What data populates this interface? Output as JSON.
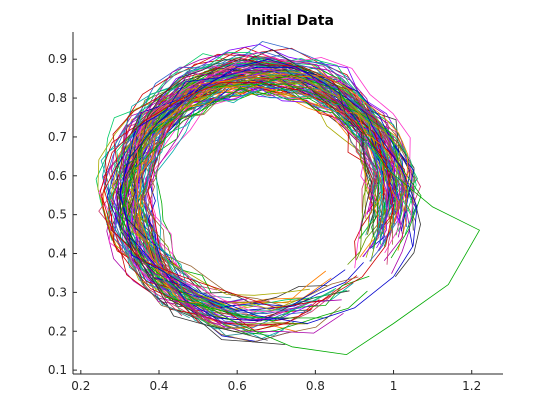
{
  "chart_data": {
    "type": "line",
    "title": "Initial Data",
    "xlabel": "",
    "ylabel": "",
    "xlim": [
      0.18,
      1.28
    ],
    "ylim": [
      0.09,
      0.97
    ],
    "grid": false,
    "legend": "none",
    "x_ticks": [
      0.2,
      0.4,
      0.6,
      0.8,
      1.0,
      1.2
    ],
    "x_tick_labels": [
      "0.2",
      "0.4",
      "0.6",
      "0.8",
      "1",
      "1.2"
    ],
    "y_ticks": [
      0.1,
      0.2,
      0.3,
      0.4,
      0.5,
      0.6,
      0.7,
      0.8,
      0.9
    ],
    "y_tick_labels": [
      "0.1",
      "0.2",
      "0.3",
      "0.4",
      "0.5",
      "0.6",
      "0.7",
      "0.8",
      "0.9"
    ],
    "trace_count": 120,
    "palette": [
      "#0000cc",
      "#cc0000",
      "#00aa00",
      "#aa00aa",
      "#00aaaa",
      "#aaaa00",
      "#333333",
      "#ff7f00",
      "#7f00ff",
      "#00cc66",
      "#cc3366",
      "#3366cc",
      "#669900",
      "#996633",
      "#ff33cc",
      "#339999"
    ],
    "representative_traces": [
      {
        "x": [
          0.95,
          1.02,
          1.06,
          1.05,
          1.0,
          0.9,
          0.78,
          0.65,
          0.5,
          0.4,
          0.33,
          0.3,
          0.32,
          0.4,
          0.5,
          0.6,
          0.68,
          0.75,
          0.82,
          0.88,
          0.93,
          0.95
        ],
        "y": [
          0.72,
          0.62,
          0.52,
          0.42,
          0.34,
          0.26,
          0.22,
          0.24,
          0.3,
          0.36,
          0.44,
          0.55,
          0.64,
          0.74,
          0.82,
          0.88,
          0.9,
          0.88,
          0.84,
          0.8,
          0.76,
          0.72
        ]
      },
      {
        "x": [
          0.9,
          0.98,
          1.0,
          0.98,
          0.92,
          0.82,
          0.7,
          0.58,
          0.46,
          0.36,
          0.28,
          0.25,
          0.28,
          0.36,
          0.46,
          0.56,
          0.66,
          0.76,
          0.84,
          0.9
        ],
        "y": [
          0.74,
          0.64,
          0.52,
          0.42,
          0.34,
          0.28,
          0.26,
          0.3,
          0.34,
          0.38,
          0.46,
          0.56,
          0.66,
          0.74,
          0.8,
          0.84,
          0.84,
          0.82,
          0.78,
          0.74
        ]
      },
      {
        "x": [
          0.98,
          1.1,
          1.22,
          1.14,
          1.0,
          0.88,
          0.74,
          0.6,
          0.46,
          0.36,
          0.3,
          0.34,
          0.46,
          0.6,
          0.74,
          0.86,
          0.98
        ],
        "y": [
          0.62,
          0.52,
          0.46,
          0.32,
          0.22,
          0.14,
          0.16,
          0.22,
          0.3,
          0.38,
          0.5,
          0.62,
          0.74,
          0.82,
          0.86,
          0.82,
          0.62
        ]
      }
    ]
  }
}
